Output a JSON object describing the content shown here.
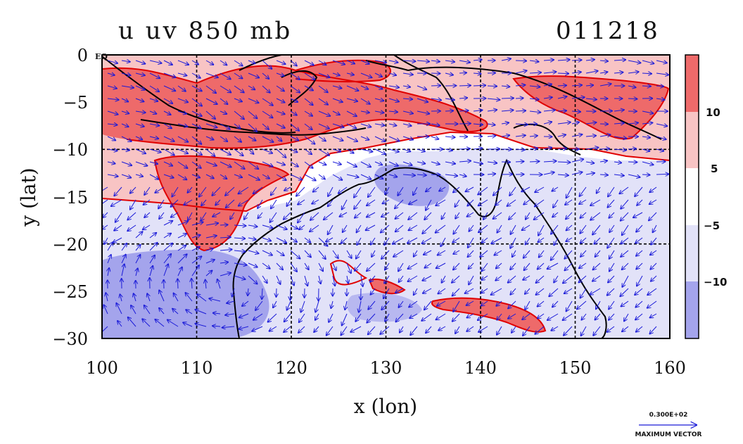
{
  "header": {
    "title": "u uv 850 mb",
    "date": "011218"
  },
  "chart_data": {
    "type": "heatmap",
    "title": "u uv 850 mb",
    "xlabel": "x (lon)",
    "ylabel": "y (lat)",
    "xlim": [
      100,
      160
    ],
    "ylim": [
      -30,
      0
    ],
    "x_ticks": [
      "100",
      "110",
      "120",
      "130",
      "140",
      "150",
      "160"
    ],
    "y_ticks": [
      "0",
      "−5",
      "−10",
      "−15",
      "−20",
      "−25",
      "−30"
    ],
    "eq_label": "EQ",
    "grid": true,
    "colorbar": {
      "labels": [
        "10",
        "5",
        "−5",
        "−10"
      ],
      "colors": [
        "#ee6a6a",
        "#f8c4c4",
        "#ffffff",
        "#e2e2f8",
        "#a4a4ec"
      ]
    },
    "contour_color": "#e00000",
    "coast_color": "#000000",
    "vector_color": "#1a1ad8"
  },
  "vector_key": {
    "value": "0.300E+02",
    "label": "MAXIMUM VECTOR"
  },
  "colors": {
    "strong_positive": "#ee6a6a",
    "positive": "#f8c4c4",
    "neutral": "#ffffff",
    "negative": "#e2e2f8",
    "strong_negative": "#a4a4ec"
  }
}
